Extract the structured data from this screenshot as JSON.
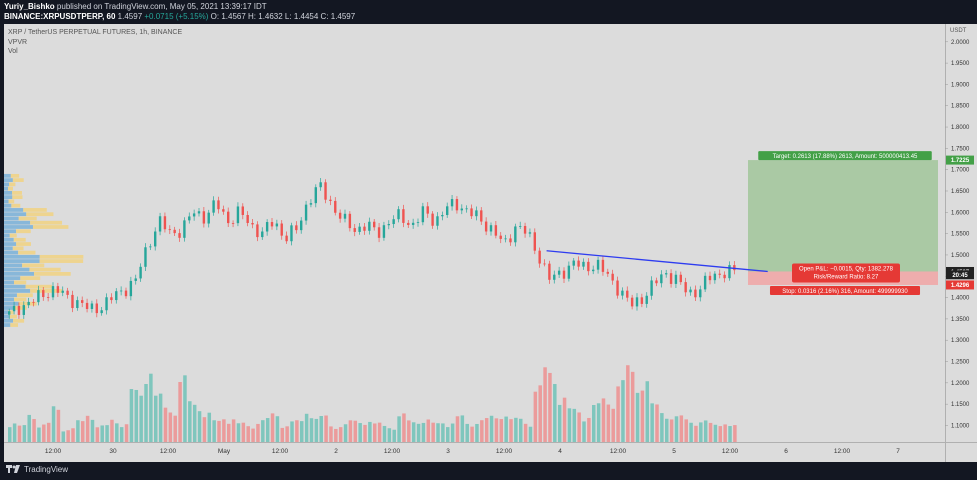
{
  "header": {
    "author": "Yuriy_Bishko",
    "published_line": "published on TradingView.com, May 05, 2021 13:39:17 IDT",
    "symbol": "BINANCE:XRPUSDTPERP, 60",
    "last_price": "1.4597",
    "change": "+0.0715 (+5.15%)",
    "ohlc": "O: 1.4567  H: 1.4632  L: 1.4454  C: 1.4597"
  },
  "legend": {
    "title": "XRP / TetherUS PERPETUAL FUTURES, 1h, BINANCE",
    "indicator1": "VPVR",
    "indicator2": "Vol"
  },
  "footer": {
    "brand": "TradingView"
  },
  "colors": {
    "up": "#26a69a",
    "down": "#ef5350",
    "up_volume": "#7fc6bd",
    "down_volume": "#eb9b9b",
    "trendline": "#2e3cf0",
    "target_zone": "#a6c7a0",
    "stop_zone": "#eeaaaa",
    "vpvr_blue": "#7eb2d8",
    "vpvr_yellow": "#f3d27c",
    "background": "#dcdcdc"
  },
  "position": {
    "target_label": "Target: 0.2613 (17.88%) 2613, Amount: 500000413.45",
    "stop_label": "Stop: 0.0316 (2.16%) 316, Amount: 499999930",
    "pnl_line1": "Open P&L: −0.0015, Qty: 1382.278",
    "pnl_line2": "Risk/Reward Ratio: 8.27",
    "entry": 1.4612,
    "target": 1.7225,
    "stop": 1.4296
  },
  "price_badges": [
    {
      "label": "1.7225",
      "value": 1.7225,
      "color": "#43a047"
    },
    {
      "label": "1.4612",
      "value": 1.4612,
      "color": "#222222"
    },
    {
      "label": "1.4597",
      "value": 1.4597,
      "color": "#222222"
    },
    {
      "label": "20:45",
      "value": 1.4535,
      "color": "#222222"
    },
    {
      "label": "1.4296",
      "value": 1.4296,
      "color": "#e53935"
    }
  ],
  "chart_data": {
    "type": "candlestick",
    "symbol": "XRP / TetherUS PERPETUAL FUTURES",
    "interval": "1h",
    "y_unit": "USDT",
    "ylim": [
      1.08,
      2.03
    ],
    "y_ticks": [
      "2.0000",
      "1.9500",
      "1.9000",
      "1.8500",
      "1.8000",
      "1.7500",
      "1.7000",
      "1.6500",
      "1.6000",
      "1.5500",
      "1.5000",
      "1.4500",
      "1.4000",
      "1.3500",
      "1.3000",
      "1.2500",
      "1.2000",
      "1.1500",
      "1.1000"
    ],
    "x_ticks": [
      "12:00",
      "30",
      "12:00",
      "May",
      "12:00",
      "2",
      "12:00",
      "3",
      "12:00",
      "4",
      "12:00",
      "5",
      "12:00",
      "6",
      "12:00",
      "7"
    ],
    "close_path": [
      1.36,
      1.38,
      1.39,
      1.41,
      1.42,
      1.4,
      1.39,
      1.37,
      1.38,
      1.4,
      1.42,
      1.44,
      1.52,
      1.58,
      1.55,
      1.56,
      1.6,
      1.59,
      1.62,
      1.58,
      1.6,
      1.57,
      1.55,
      1.58,
      1.54,
      1.56,
      1.63,
      1.66,
      1.62,
      1.58,
      1.56,
      1.57,
      1.55,
      1.58,
      1.59,
      1.57,
      1.6,
      1.58,
      1.61,
      1.62,
      1.6,
      1.58,
      1.56,
      1.52,
      1.57,
      1.55,
      1.5,
      1.44,
      1.46,
      1.48,
      1.47,
      1.48,
      1.45,
      1.42,
      1.38,
      1.4,
      1.43,
      1.46,
      1.44,
      1.41,
      1.42,
      1.45,
      1.46,
      1.46
    ],
    "volume_path": [
      0.9,
      0.7,
      1.2,
      0.8,
      1.5,
      0.6,
      0.9,
      1.3,
      0.7,
      1.0,
      0.8,
      2.2,
      3.4,
      2.0,
      1.5,
      2.8,
      1.7,
      1.3,
      0.9,
      1.1,
      0.8,
      0.7,
      1.0,
      1.2,
      0.8,
      0.9,
      1.4,
      1.1,
      0.7,
      0.8,
      0.9,
      1.0,
      0.8,
      0.7,
      1.2,
      0.9,
      1.0,
      0.8,
      0.9,
      1.1,
      0.8,
      1.0,
      1.1,
      1.3,
      1.0,
      0.9,
      2.4,
      3.1,
      2.0,
      1.4,
      1.2,
      1.6,
      1.9,
      2.6,
      3.2,
      2.7,
      1.6,
      1.4,
      1.1,
      1.0,
      0.9,
      0.8,
      0.9,
      0.7
    ],
    "trendline": {
      "from": [
        0.5766,
        1.5098
      ],
      "to": [
        0.8116,
        1.4612
      ]
    }
  }
}
